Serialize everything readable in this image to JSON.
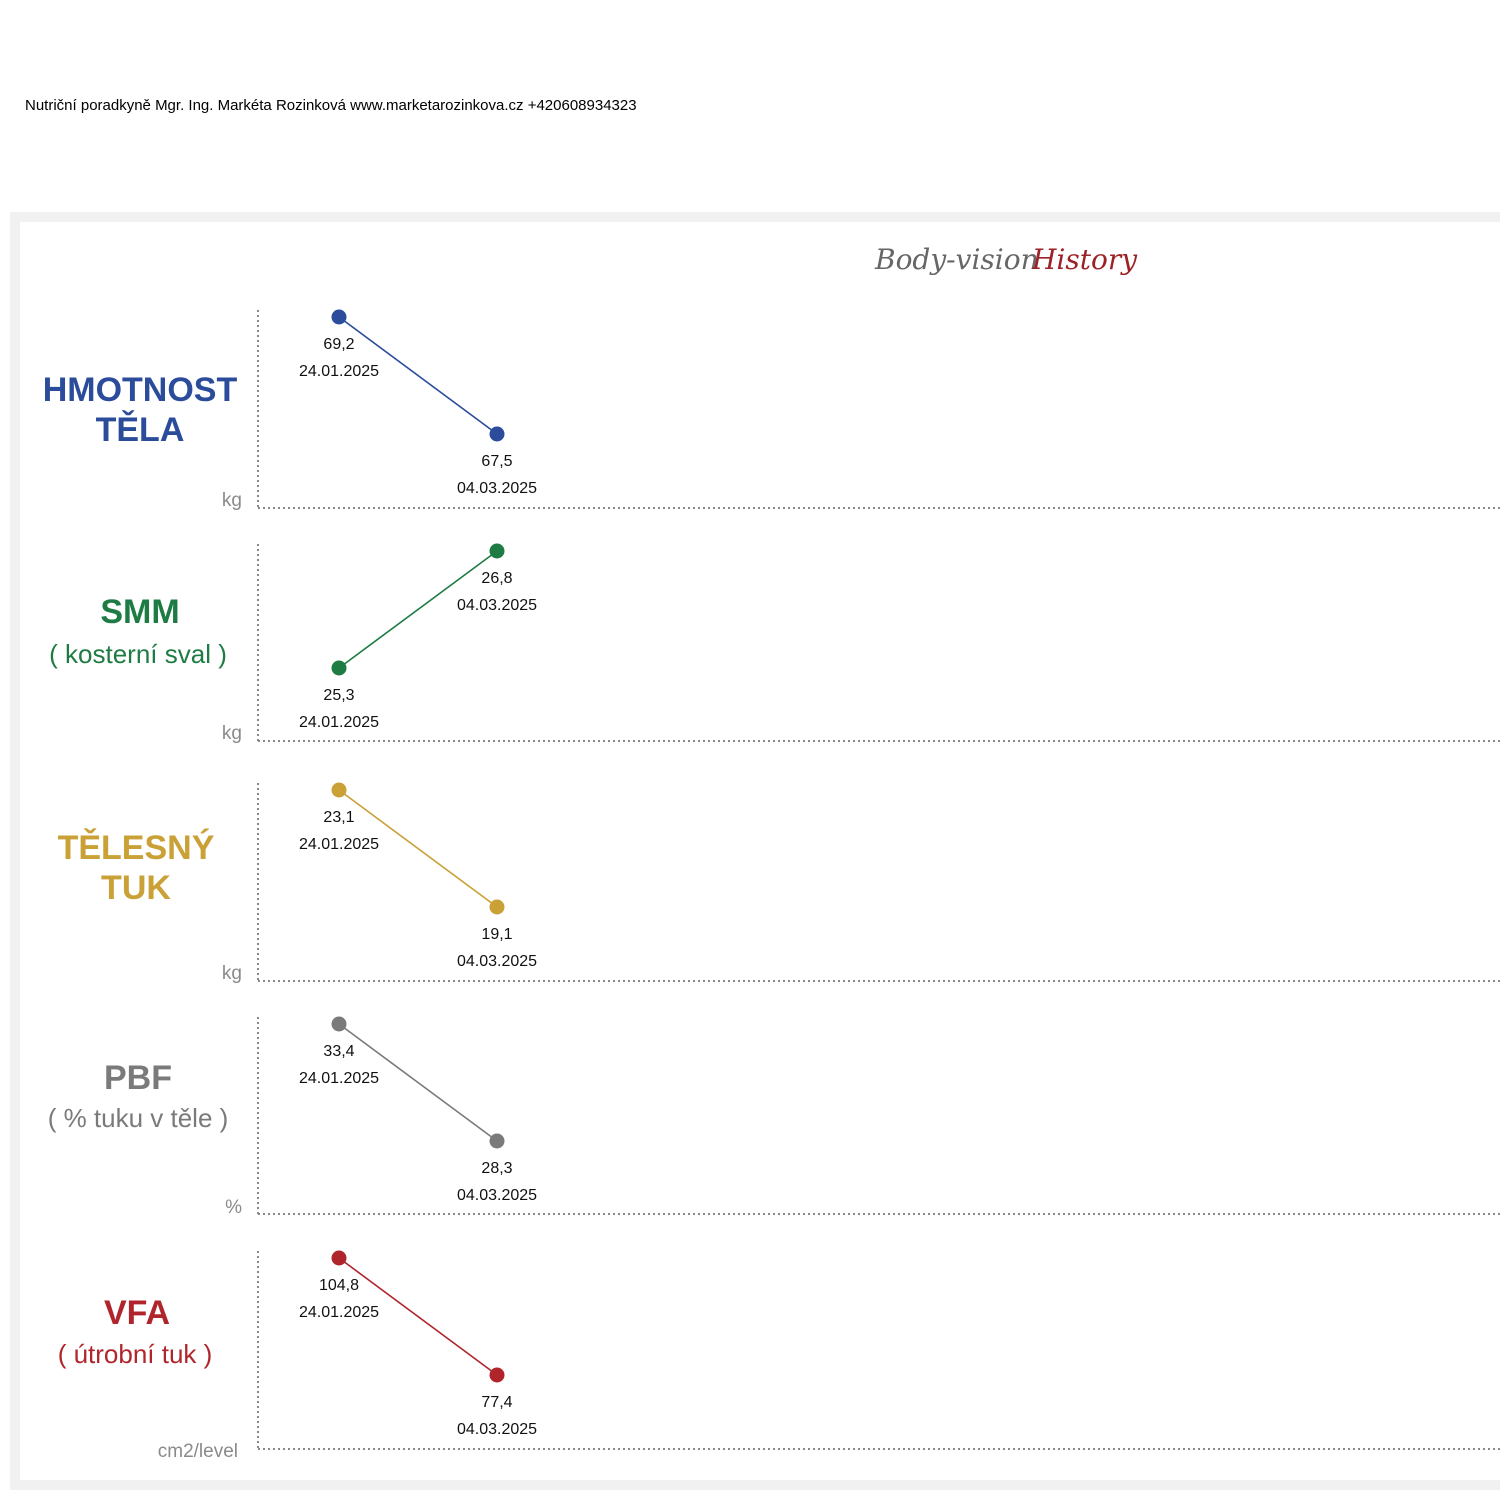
{
  "header": {
    "text": "Nutriční poradkyně Mgr. Ing. Markéta Rozinková www.marketarozinkova.cz +420608934323"
  },
  "logo": {
    "part1": "Body-vision",
    "part2": "History",
    "color1": "#666666",
    "color2": "#9b2226"
  },
  "chart_data": [
    {
      "type": "line",
      "title": "HMOTNOST TĚLA",
      "title_lines": [
        "HMOTNOST",
        "TĚLA"
      ],
      "subtitle": "",
      "unit": "kg",
      "color": "#2b4c9b",
      "x": [
        "24.01.2025",
        "04.03.2025"
      ],
      "values": [
        69.2,
        67.5
      ],
      "value_labels": [
        "69,2",
        "67,5"
      ]
    },
    {
      "type": "line",
      "title": "SMM",
      "title_lines": [
        "SMM"
      ],
      "subtitle": "( kosterní sval )",
      "unit": "kg",
      "color": "#1e7b43",
      "x": [
        "24.01.2025",
        "04.03.2025"
      ],
      "values": [
        25.3,
        26.8
      ],
      "value_labels": [
        "25,3",
        "26,8"
      ]
    },
    {
      "type": "line",
      "title": "TĚLESNÝ TUK",
      "title_lines": [
        "TĚLESNÝ",
        "TUK"
      ],
      "subtitle": "",
      "unit": "kg",
      "color": "#c9a137",
      "x": [
        "24.01.2025",
        "04.03.2025"
      ],
      "values": [
        23.1,
        19.1
      ],
      "value_labels": [
        "23,1",
        "19,1"
      ]
    },
    {
      "type": "line",
      "title": "PBF",
      "title_lines": [
        "PBF"
      ],
      "subtitle": "( % tuku v těle )",
      "unit": "%",
      "color": "#7a7a7a",
      "x": [
        "24.01.2025",
        "04.03.2025"
      ],
      "values": [
        33.4,
        28.3
      ],
      "value_labels": [
        "33,4",
        "28,3"
      ]
    },
    {
      "type": "line",
      "title": "VFA",
      "title_lines": [
        "VFA"
      ],
      "subtitle": "( útrobní tuk )",
      "unit": "cm2/level",
      "color": "#b0252b",
      "x": [
        "24.01.2025",
        "04.03.2025"
      ],
      "values": [
        104.8,
        77.4
      ],
      "value_labels": [
        "104,8",
        "77,4"
      ]
    }
  ]
}
